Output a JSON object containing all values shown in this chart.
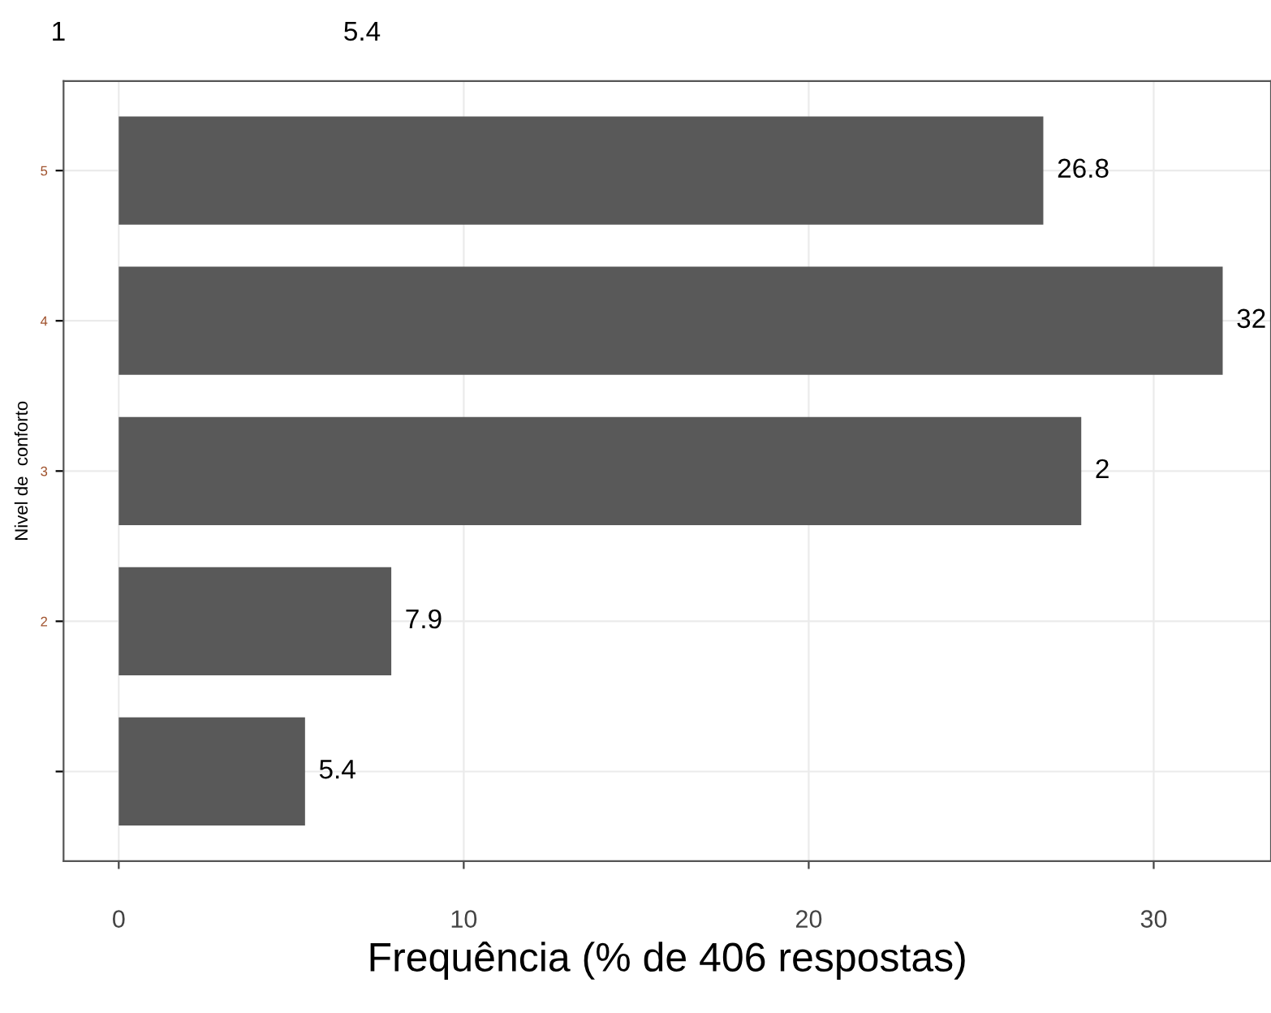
{
  "chart_data": {
    "type": "bar",
    "orientation": "horizontal",
    "xlabel": "Frequência (% de 406 respostas)",
    "ylabel": "Nivel de  conforto",
    "categories": [
      "5",
      "4",
      "3",
      "2",
      null
    ],
    "values": [
      26.8,
      32,
      27.9,
      7.9,
      5.4
    ],
    "value_labels": [
      "26.8",
      "32",
      null,
      "7.9",
      "5.4"
    ],
    "color": "#595959",
    "xlim": [
      -1.6,
      33.4
    ],
    "xticks": [
      0,
      10,
      20,
      30
    ],
    "grid": true,
    "annotations": [
      "1",
      "5.4",
      {
        "text": "2",
        "x": 27.9,
        "y": "3"
      }
    ]
  }
}
